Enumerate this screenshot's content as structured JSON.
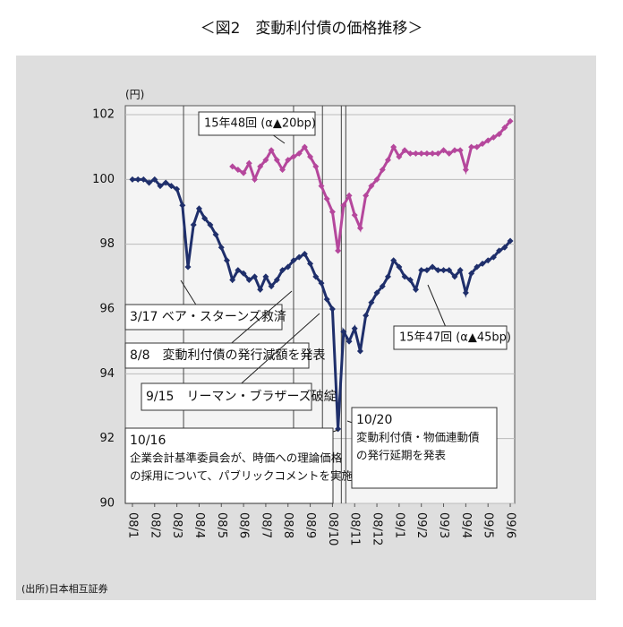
{
  "chart_data": {
    "type": "line",
    "title": "＜図2　変動利付債の価格推移＞",
    "y_label": "(円)",
    "source": "(出所)日本相互証券",
    "x": [
      0,
      0.25,
      0.5,
      0.75,
      1,
      1.25,
      1.5,
      1.75,
      2,
      2.25,
      2.5,
      2.75,
      3,
      3.25,
      3.5,
      3.75,
      4,
      4.25,
      4.5,
      4.75,
      5,
      5.25,
      5.5,
      5.75,
      6,
      6.25,
      6.5,
      6.75,
      7,
      7.25,
      7.5,
      7.75,
      8,
      8.25,
      8.5,
      8.75,
      9,
      9.25,
      9.5,
      9.75,
      10,
      10.25,
      10.5,
      10.75,
      11,
      11.25,
      11.5,
      11.75,
      12,
      12.25,
      12.5,
      12.75,
      13,
      13.25,
      13.5,
      13.75,
      14,
      14.25,
      14.5,
      14.75,
      15,
      15.25,
      15.5,
      15.75,
      16,
      16.25,
      16.5,
      16.75,
      17
    ],
    "xlim": [
      -0.32,
      17.2
    ],
    "xticks": [
      {
        "value": 0,
        "label": "08/1"
      },
      {
        "value": 1,
        "label": "08/2"
      },
      {
        "value": 2,
        "label": "08/3"
      },
      {
        "value": 3,
        "label": "08/4"
      },
      {
        "value": 4,
        "label": "08/5"
      },
      {
        "value": 5,
        "label": "08/6"
      },
      {
        "value": 6,
        "label": "08/7"
      },
      {
        "value": 7,
        "label": "08/8"
      },
      {
        "value": 8,
        "label": "08/9"
      },
      {
        "value": 9,
        "label": "08/10"
      },
      {
        "value": 10,
        "label": "08/11"
      },
      {
        "value": 11,
        "label": "08/12"
      },
      {
        "value": 12,
        "label": "09/1"
      },
      {
        "value": 13,
        "label": "09/2"
      },
      {
        "value": 14,
        "label": "09/3"
      },
      {
        "value": 15,
        "label": "09/4"
      },
      {
        "value": 16,
        "label": "09/5"
      },
      {
        "value": 17,
        "label": "09/6"
      }
    ],
    "ylim": [
      90,
      102
    ],
    "yticks": [
      90,
      92,
      94,
      96,
      98,
      100,
      102
    ],
    "grid": true,
    "series": [
      {
        "name": "15年47回 (α▲45bp)",
        "color": "#1f2f6b",
        "values": [
          100.0,
          100.0,
          100.0,
          99.9,
          100.0,
          99.8,
          99.9,
          99.8,
          99.7,
          99.2,
          97.3,
          98.6,
          99.1,
          98.8,
          98.6,
          98.3,
          97.9,
          97.5,
          96.9,
          97.2,
          97.1,
          96.9,
          97.0,
          96.6,
          97.0,
          96.7,
          96.9,
          97.2,
          97.3,
          97.5,
          97.6,
          97.7,
          97.4,
          97.0,
          96.8,
          96.3,
          96.0,
          92.3,
          95.3,
          95.0,
          95.4,
          94.7,
          95.8,
          96.2,
          96.5,
          96.7,
          97.0,
          97.5,
          97.3,
          97.0,
          96.9,
          96.6,
          97.2,
          97.2,
          97.3,
          97.2,
          97.2,
          97.2,
          97.0,
          97.2,
          96.5,
          97.1,
          97.3,
          97.4,
          97.5,
          97.6,
          97.8,
          97.9,
          98.1
        ]
      },
      {
        "name": "15年48回 (α▲20bp)",
        "color": "#b5479c",
        "values": [
          null,
          null,
          null,
          null,
          null,
          null,
          null,
          null,
          null,
          null,
          null,
          null,
          null,
          null,
          null,
          null,
          null,
          null,
          100.4,
          100.3,
          100.2,
          100.5,
          100.0,
          100.4,
          100.6,
          100.9,
          100.6,
          100.3,
          100.6,
          100.7,
          100.8,
          101.0,
          100.7,
          100.4,
          99.8,
          99.4,
          99.0,
          97.8,
          99.2,
          99.5,
          98.9,
          98.5,
          99.5,
          99.8,
          100.0,
          100.3,
          100.6,
          101.0,
          100.7,
          100.9,
          100.8,
          100.8,
          100.8,
          100.8,
          100.8,
          100.8,
          100.9,
          100.8,
          100.9,
          100.9,
          100.3,
          101.0,
          101.0,
          101.1,
          101.2,
          101.3,
          101.4,
          101.6,
          101.8
        ]
      }
    ],
    "annotations": [
      {
        "x": 2.3,
        "lines": [
          "3/17 ベア・スターンズ救済"
        ]
      },
      {
        "x": 7.25,
        "lines": [
          "8/8　変動利付債の発行減額を発表"
        ]
      },
      {
        "x": 8.55,
        "lines": [
          "9/15　リーマン・ブラザーズ破綻"
        ]
      },
      {
        "x": 9.4,
        "lines": [
          "10/16",
          "企業会計基準委員会が、時価への理論価格",
          "の採用について、パブリックコメントを実施"
        ]
      },
      {
        "x": 9.6,
        "lines": [
          "10/20",
          "変動利付債・物価連動債",
          "の発行延期を発表"
        ]
      }
    ]
  }
}
